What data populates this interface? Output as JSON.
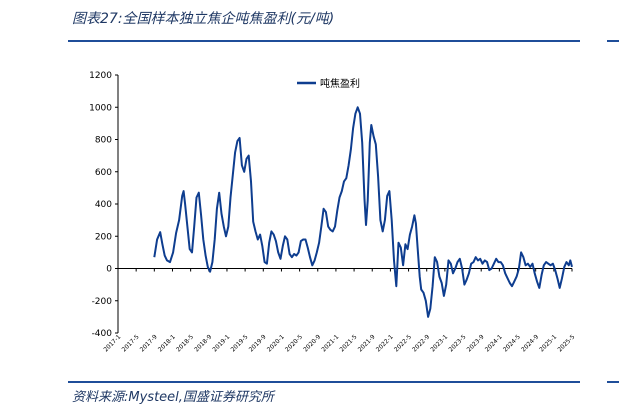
{
  "header": {
    "title": "图表27:全国样本独立焦企吨焦盈利(元/吨)"
  },
  "footer": {
    "source": "资料来源:Mysteel,国盛证券研究所"
  },
  "colors": {
    "series": "#0e3d8f",
    "rule": "#1f4e99",
    "text": "#1f3864"
  },
  "chart_data": {
    "type": "line",
    "title": "",
    "xlabel": "",
    "ylabel": "",
    "ylim": [
      -400,
      1200
    ],
    "yticks": [
      -400,
      -200,
      0,
      200,
      400,
      600,
      800,
      1000,
      1200
    ],
    "xlim": [
      "2017-01",
      "2025-05"
    ],
    "xticks": [
      "2017-1",
      "2017-5",
      "2017-9",
      "2018-1",
      "2018-5",
      "2018-9",
      "2019-1",
      "2019-5",
      "2019-9",
      "2020-1",
      "2020-5",
      "2020-9",
      "2021-1",
      "2021-5",
      "2021-9",
      "2022-1",
      "2022-5",
      "2022-9",
      "2023-1",
      "2023-5",
      "2023-9",
      "2024-1",
      "2024-5",
      "2024-9",
      "2025-1",
      "2025-5"
    ],
    "grid": false,
    "legend": "top-center",
    "series": [
      {
        "name": "吨焦盈利",
        "points": [
          [
            "2017-09-01",
            70
          ],
          [
            "2017-09-20",
            180
          ],
          [
            "2017-10-10",
            225
          ],
          [
            "2017-10-25",
            150
          ],
          [
            "2017-11-10",
            80
          ],
          [
            "2017-11-25",
            50
          ],
          [
            "2017-12-15",
            40
          ],
          [
            "2018-01-05",
            100
          ],
          [
            "2018-01-25",
            220
          ],
          [
            "2018-02-15",
            300
          ],
          [
            "2018-03-05",
            450
          ],
          [
            "2018-03-15",
            480
          ],
          [
            "2018-03-25",
            400
          ],
          [
            "2018-04-10",
            260
          ],
          [
            "2018-04-25",
            120
          ],
          [
            "2018-05-10",
            100
          ],
          [
            "2018-05-25",
            260
          ],
          [
            "2018-06-10",
            440
          ],
          [
            "2018-06-25",
            470
          ],
          [
            "2018-07-10",
            330
          ],
          [
            "2018-07-25",
            180
          ],
          [
            "2018-08-10",
            80
          ],
          [
            "2018-08-25",
            10
          ],
          [
            "2018-09-10",
            -20
          ],
          [
            "2018-09-25",
            40
          ],
          [
            "2018-10-10",
            180
          ],
          [
            "2018-10-25",
            370
          ],
          [
            "2018-11-10",
            470
          ],
          [
            "2018-11-25",
            340
          ],
          [
            "2018-12-10",
            260
          ],
          [
            "2018-12-25",
            200
          ],
          [
            "2019-01-10",
            260
          ],
          [
            "2019-01-25",
            440
          ],
          [
            "2019-02-10",
            580
          ],
          [
            "2019-02-25",
            720
          ],
          [
            "2019-03-10",
            790
          ],
          [
            "2019-03-25",
            810
          ],
          [
            "2019-04-10",
            640
          ],
          [
            "2019-04-25",
            600
          ],
          [
            "2019-05-10",
            680
          ],
          [
            "2019-05-25",
            700
          ],
          [
            "2019-06-10",
            540
          ],
          [
            "2019-06-25",
            290
          ],
          [
            "2019-07-10",
            230
          ],
          [
            "2019-07-25",
            180
          ],
          [
            "2019-08-10",
            210
          ],
          [
            "2019-08-25",
            140
          ],
          [
            "2019-09-10",
            40
          ],
          [
            "2019-09-25",
            30
          ],
          [
            "2019-10-10",
            160
          ],
          [
            "2019-10-25",
            230
          ],
          [
            "2019-11-10",
            210
          ],
          [
            "2019-11-25",
            170
          ],
          [
            "2019-12-10",
            100
          ],
          [
            "2019-12-25",
            60
          ],
          [
            "2020-01-10",
            140
          ],
          [
            "2020-01-25",
            200
          ],
          [
            "2020-02-10",
            180
          ],
          [
            "2020-02-25",
            90
          ],
          [
            "2020-03-10",
            70
          ],
          [
            "2020-03-25",
            90
          ],
          [
            "2020-04-10",
            80
          ],
          [
            "2020-04-25",
            100
          ],
          [
            "2020-05-10",
            170
          ],
          [
            "2020-05-25",
            180
          ],
          [
            "2020-06-10",
            180
          ],
          [
            "2020-06-25",
            130
          ],
          [
            "2020-07-10",
            70
          ],
          [
            "2020-07-25",
            20
          ],
          [
            "2020-08-10",
            50
          ],
          [
            "2020-08-25",
            100
          ],
          [
            "2020-09-10",
            160
          ],
          [
            "2020-09-25",
            260
          ],
          [
            "2020-10-10",
            370
          ],
          [
            "2020-10-25",
            350
          ],
          [
            "2020-11-10",
            260
          ],
          [
            "2020-11-25",
            240
          ],
          [
            "2020-12-10",
            230
          ],
          [
            "2020-12-25",
            260
          ],
          [
            "2021-01-10",
            360
          ],
          [
            "2021-01-25",
            440
          ],
          [
            "2021-02-10",
            480
          ],
          [
            "2021-02-25",
            540
          ],
          [
            "2021-03-10",
            560
          ],
          [
            "2021-03-25",
            640
          ],
          [
            "2021-04-10",
            740
          ],
          [
            "2021-04-25",
            870
          ],
          [
            "2021-05-10",
            960
          ],
          [
            "2021-05-25",
            1000
          ],
          [
            "2021-06-10",
            960
          ],
          [
            "2021-06-25",
            780
          ],
          [
            "2021-07-10",
            430
          ],
          [
            "2021-07-20",
            270
          ],
          [
            "2021-08-01",
            420
          ],
          [
            "2021-08-15",
            780
          ],
          [
            "2021-08-25",
            890
          ],
          [
            "2021-09-10",
            820
          ],
          [
            "2021-09-25",
            770
          ],
          [
            "2021-10-10",
            570
          ],
          [
            "2021-10-25",
            300
          ],
          [
            "2021-11-10",
            230
          ],
          [
            "2021-11-25",
            300
          ],
          [
            "2021-12-10",
            450
          ],
          [
            "2021-12-25",
            480
          ],
          [
            "2022-01-10",
            300
          ],
          [
            "2022-01-25",
            50
          ],
          [
            "2022-02-10",
            -110
          ],
          [
            "2022-02-25",
            160
          ],
          [
            "2022-03-10",
            130
          ],
          [
            "2022-03-25",
            20
          ],
          [
            "2022-04-10",
            150
          ],
          [
            "2022-04-25",
            120
          ],
          [
            "2022-05-10",
            210
          ],
          [
            "2022-05-25",
            260
          ],
          [
            "2022-06-10",
            330
          ],
          [
            "2022-06-20",
            280
          ],
          [
            "2022-07-01",
            130
          ],
          [
            "2022-07-15",
            -50
          ],
          [
            "2022-07-25",
            -130
          ],
          [
            "2022-08-10",
            -150
          ],
          [
            "2022-08-25",
            -200
          ],
          [
            "2022-09-10",
            -300
          ],
          [
            "2022-09-25",
            -250
          ],
          [
            "2022-10-10",
            -110
          ],
          [
            "2022-10-25",
            70
          ],
          [
            "2022-11-10",
            40
          ],
          [
            "2022-11-25",
            -50
          ],
          [
            "2022-12-10",
            -90
          ],
          [
            "2022-12-25",
            -170
          ],
          [
            "2023-01-10",
            -100
          ],
          [
            "2023-01-25",
            50
          ],
          [
            "2023-02-10",
            30
          ],
          [
            "2023-02-25",
            -30
          ],
          [
            "2023-03-10",
            0
          ],
          [
            "2023-03-25",
            40
          ],
          [
            "2023-04-10",
            60
          ],
          [
            "2023-04-25",
            0
          ],
          [
            "2023-05-10",
            -100
          ],
          [
            "2023-05-25",
            -70
          ],
          [
            "2023-06-10",
            -30
          ],
          [
            "2023-06-25",
            30
          ],
          [
            "2023-07-10",
            40
          ],
          [
            "2023-07-25",
            70
          ],
          [
            "2023-08-10",
            50
          ],
          [
            "2023-08-25",
            60
          ],
          [
            "2023-09-10",
            30
          ],
          [
            "2023-09-25",
            50
          ],
          [
            "2023-10-10",
            40
          ],
          [
            "2023-10-25",
            -10
          ],
          [
            "2023-11-10",
            0
          ],
          [
            "2023-11-25",
            30
          ],
          [
            "2023-12-10",
            60
          ],
          [
            "2023-12-25",
            40
          ],
          [
            "2024-01-10",
            40
          ],
          [
            "2024-01-25",
            20
          ],
          [
            "2024-02-10",
            -30
          ],
          [
            "2024-02-25",
            -60
          ],
          [
            "2024-03-10",
            -90
          ],
          [
            "2024-03-25",
            -110
          ],
          [
            "2024-04-10",
            -80
          ],
          [
            "2024-04-25",
            -50
          ],
          [
            "2024-05-10",
            0
          ],
          [
            "2024-05-25",
            100
          ],
          [
            "2024-06-10",
            70
          ],
          [
            "2024-06-25",
            20
          ],
          [
            "2024-07-10",
            30
          ],
          [
            "2024-07-25",
            10
          ],
          [
            "2024-08-10",
            30
          ],
          [
            "2024-08-25",
            -30
          ],
          [
            "2024-09-10",
            -80
          ],
          [
            "2024-09-25",
            -120
          ],
          [
            "2024-10-10",
            -40
          ],
          [
            "2024-10-25",
            20
          ],
          [
            "2024-11-10",
            40
          ],
          [
            "2024-11-25",
            30
          ],
          [
            "2024-12-10",
            20
          ],
          [
            "2024-12-25",
            30
          ],
          [
            "2025-01-10",
            -10
          ],
          [
            "2025-01-25",
            -60
          ],
          [
            "2025-02-10",
            -120
          ],
          [
            "2025-02-25",
            -60
          ],
          [
            "2025-03-10",
            10
          ],
          [
            "2025-03-25",
            40
          ],
          [
            "2025-04-10",
            20
          ],
          [
            "2025-04-20",
            50
          ],
          [
            "2025-05-01",
            10
          ]
        ]
      }
    ]
  }
}
